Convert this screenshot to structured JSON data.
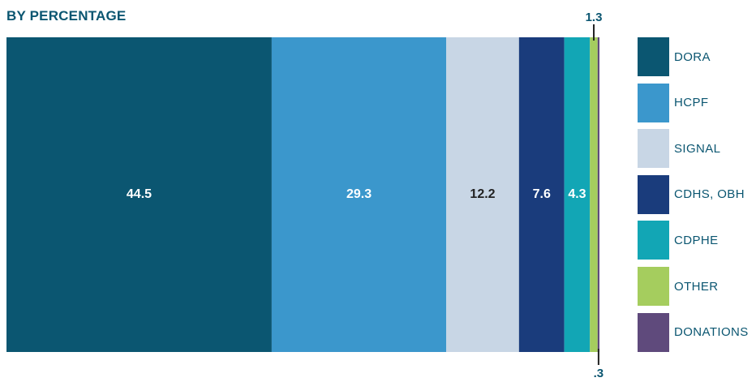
{
  "chart_data": {
    "type": "bar",
    "title": "BY PERCENTAGE",
    "categories": [
      "DORA",
      "HCPF",
      "SIGNAL",
      "CDHS, OBH",
      "CDPHE",
      "OTHER",
      "DONATIONS"
    ],
    "values": [
      44.5,
      29.3,
      12.2,
      7.6,
      4.3,
      1.3,
      0.3
    ],
    "value_labels": [
      "44.5",
      "29.3",
      "12.2",
      "7.6",
      "4.3",
      "1.3",
      ".3"
    ],
    "colors": [
      "#0b5671",
      "#3b97cc",
      "#c8d6e5",
      "#1a3c7c",
      "#12a6b5",
      "#a5cd5e",
      "#5f4a7c"
    ],
    "label_colors": [
      "#ffffff",
      "#ffffff",
      "#222222",
      "#ffffff",
      "#ffffff",
      "#0b5671",
      "#0b5671"
    ],
    "legend_position": "right"
  }
}
